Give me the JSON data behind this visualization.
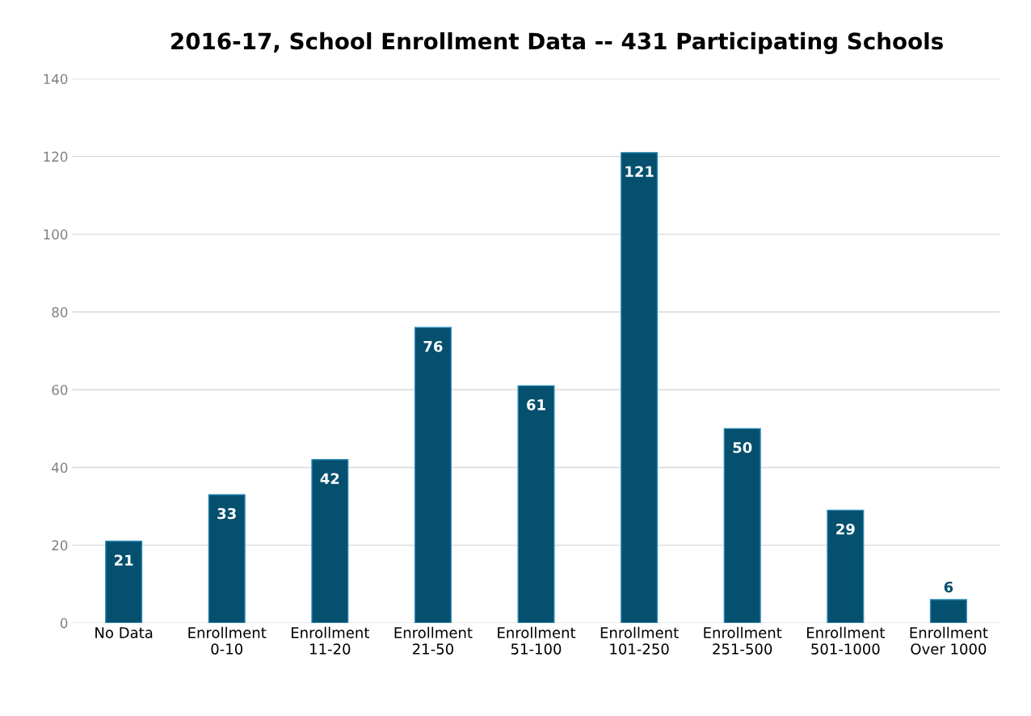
{
  "chart_data": {
    "type": "bar",
    "title": "2016-17, School Enrollment Data -- 431 Participating Schools",
    "categories": [
      "No Data",
      "Enrollment\n0-10",
      "Enrollment\n11-20",
      "Enrollment\n21-50",
      "Enrollment\n51-100",
      "Enrollment\n101-250",
      "Enrollment\n251-500",
      "Enrollment\n501-1000",
      "Enrollment\nOver 1000"
    ],
    "values": [
      21,
      33,
      42,
      76,
      61,
      121,
      50,
      29,
      6
    ],
    "color": "#04506e",
    "ylim": [
      0,
      140
    ],
    "yticks": [
      0,
      20,
      40,
      60,
      80,
      100,
      120,
      140
    ],
    "grid": "y",
    "data_labels": true
  }
}
